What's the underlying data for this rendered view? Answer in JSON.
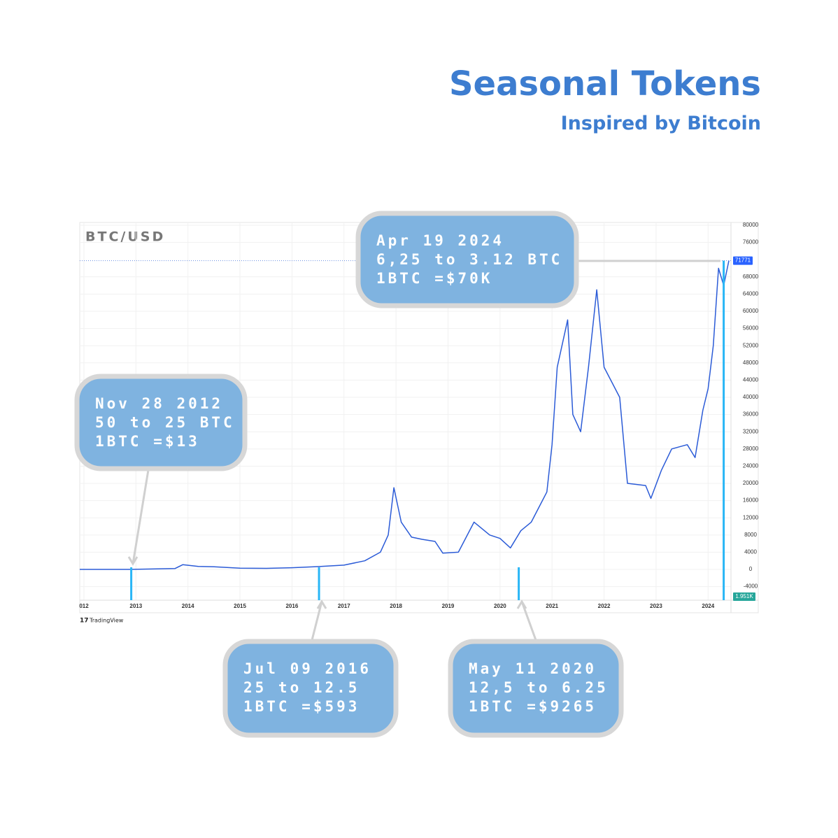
{
  "header": {
    "title": "Seasonal Tokens",
    "subtitle": "Inspired by Bitcoin"
  },
  "chart_data": {
    "type": "line",
    "title": "BTC/USD",
    "color": "#2b5bd7",
    "grid": true,
    "x": [
      2011.92,
      2012.9,
      2013.75,
      2013.9,
      2014.2,
      2014.5,
      2015.0,
      2015.5,
      2016.0,
      2016.5,
      2017.0,
      2017.4,
      2017.7,
      2017.85,
      2017.96,
      2018.1,
      2018.3,
      2018.5,
      2018.75,
      2018.9,
      2019.2,
      2019.5,
      2019.8,
      2020.0,
      2020.2,
      2020.4,
      2020.6,
      2020.9,
      2021.0,
      2021.1,
      2021.3,
      2021.4,
      2021.55,
      2021.7,
      2021.86,
      2022.0,
      2022.3,
      2022.45,
      2022.8,
      2022.9,
      2023.1,
      2023.3,
      2023.6,
      2023.75,
      2023.9,
      2024.0,
      2024.1,
      2024.2,
      2024.3,
      2024.4
    ],
    "values": [
      5,
      12,
      200,
      1100,
      700,
      600,
      300,
      250,
      400,
      650,
      1000,
      2000,
      4000,
      8000,
      19000,
      11000,
      7500,
      7000,
      6500,
      3800,
      4000,
      11000,
      8000,
      7200,
      5000,
      9000,
      11000,
      18000,
      29000,
      47000,
      58000,
      36000,
      32000,
      47000,
      65000,
      47000,
      40000,
      20000,
      19500,
      16500,
      23000,
      28000,
      29000,
      26000,
      37000,
      42000,
      52000,
      70000,
      66000,
      71771
    ],
    "xlim": [
      2011.92,
      2024.44
    ],
    "ylim": [
      -7150,
      80650
    ],
    "xticks": [
      {
        "value": 2012,
        "label": "012"
      },
      2013,
      2014,
      2015,
      2016,
      2017,
      2018,
      2019,
      2020,
      2021,
      2022,
      2023,
      2024
    ],
    "yticks": [
      80000,
      76000,
      68000,
      64000,
      60000,
      56000,
      52000,
      48000,
      44000,
      40000,
      36000,
      32000,
      28000,
      24000,
      20000,
      16000,
      12000,
      8000,
      4000,
      0,
      -4000
    ],
    "last_price": 71771,
    "volume_label": "1.951K",
    "branding": "TradingView",
    "annotations": [
      {
        "x": 2012.91,
        "lines": [
          "Nov 28 2012",
          "50 to 25 BTC",
          "1BTC =$13"
        ]
      },
      {
        "x": 2016.52,
        "lines": [
          "Jul 09 2016",
          "25 to 12.5",
          "1BTC =$593"
        ]
      },
      {
        "x": 2020.36,
        "lines": [
          "May 11 2020",
          "12,5 to 6.25",
          "1BTC =$9265"
        ]
      },
      {
        "x": 2024.3,
        "lines": [
          "Apr 19 2024",
          "6,25 to 3.12 BTC",
          "1BTC =$70K"
        ]
      }
    ]
  }
}
